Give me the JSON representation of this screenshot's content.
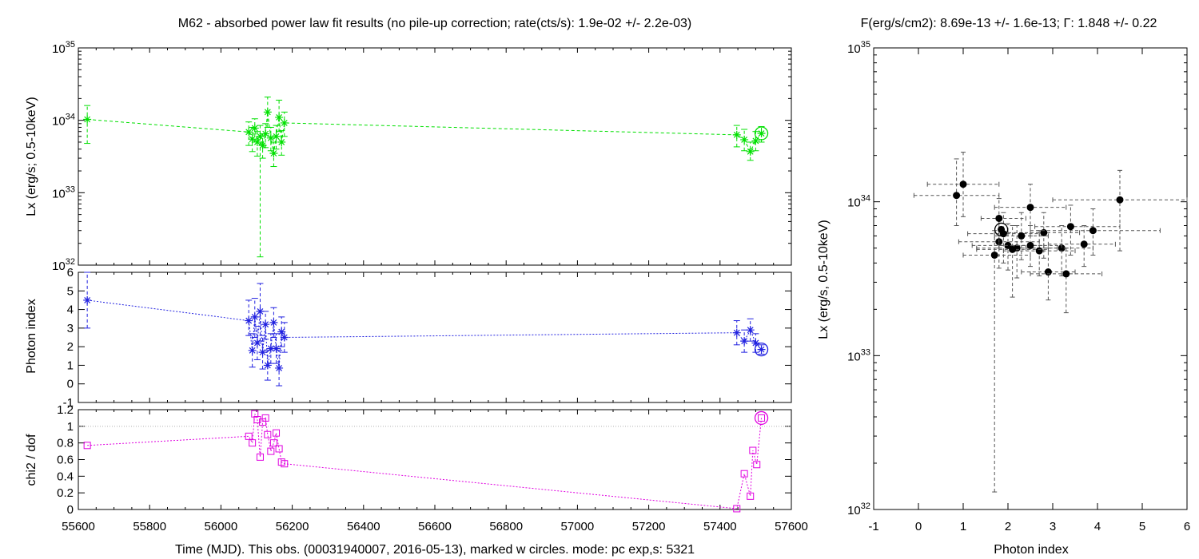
{
  "chart_data": [
    {
      "type": "scatter",
      "panel": "luminosity-vs-time",
      "title": "M62  - absorbed power law fit results (no pile-up correction; rate(cts/s): 1.9e-02 +/- 2.2e-03)",
      "ylabel": "Lx (erg/s; 0.5-10keV)",
      "xlim": [
        55600,
        57600
      ],
      "ylim": [
        1e+32,
        1e+35
      ],
      "yscale": "log",
      "ytick_labels": [
        "10^32",
        "10^33",
        "10^34",
        "10^35"
      ],
      "color": "#00e000",
      "points": [
        {
          "x": 55625,
          "y": 1.03e+34,
          "lo": 4.8e+33,
          "hi": 1.6e+34
        },
        {
          "x": 56078,
          "y": 6.9e+33,
          "lo": 4.5e+33,
          "hi": 9.5e+33
        },
        {
          "x": 56088,
          "y": 5.5e+33,
          "lo": 3.7e+33,
          "hi": 8e+33
        },
        {
          "x": 56095,
          "y": 7.8e+33,
          "lo": 5e+33,
          "hi": 1.05e+34
        },
        {
          "x": 56102,
          "y": 5e+33,
          "lo": 3.2e+33,
          "hi": 7e+33
        },
        {
          "x": 56110,
          "y": 6e+33,
          "lo": 1.3e+32,
          "hi": 8.5e+33
        },
        {
          "x": 56117,
          "y": 4.5e+33,
          "lo": 3e+33,
          "hi": 6.5e+33
        },
        {
          "x": 56125,
          "y": 6.5e+33,
          "lo": 4.2e+33,
          "hi": 9e+33
        },
        {
          "x": 56131,
          "y": 1.3e+34,
          "lo": 8e+33,
          "hi": 2.1e+34
        },
        {
          "x": 56140,
          "y": 5.7e+33,
          "lo": 3.8e+33,
          "hi": 8e+33
        },
        {
          "x": 56148,
          "y": 3.5e+33,
          "lo": 2.3e+33,
          "hi": 5e+33
        },
        {
          "x": 56155,
          "y": 6e+33,
          "lo": 4e+33,
          "hi": 8.5e+33
        },
        {
          "x": 56163,
          "y": 1.1e+34,
          "lo": 7e+33,
          "hi": 1.9e+34
        },
        {
          "x": 56170,
          "y": 5e+33,
          "lo": 3.3e+33,
          "hi": 7.2e+33
        },
        {
          "x": 56178,
          "y": 9.2e+33,
          "lo": 6e+33,
          "hi": 1.3e+34
        },
        {
          "x": 57447,
          "y": 6.3e+33,
          "lo": 4.3e+33,
          "hi": 8.5e+33
        },
        {
          "x": 57468,
          "y": 5.4e+33,
          "lo": 3.8e+33,
          "hi": 7.5e+33
        },
        {
          "x": 57485,
          "y": 3.7e+33,
          "lo": 2.8e+33,
          "hi": 5e+33
        },
        {
          "x": 57500,
          "y": 5.2e+33,
          "lo": 3.8e+33,
          "hi": 7e+33
        },
        {
          "x": 57516,
          "y": 6.6e+33,
          "lo": 5e+33,
          "hi": 8.2e+33
        }
      ],
      "highlighted_x": 57516
    },
    {
      "type": "scatter",
      "panel": "photon-index-vs-time",
      "ylabel": "Photon index",
      "xlim": [
        55600,
        57600
      ],
      "ylim": [
        -1,
        6
      ],
      "yticks": [
        -1,
        0,
        1,
        2,
        3,
        4,
        5,
        6
      ],
      "color": "#2020e0",
      "points": [
        {
          "x": 55625,
          "y": 4.5,
          "lo": 3.0,
          "hi": 6.0
        },
        {
          "x": 56078,
          "y": 3.4,
          "lo": 2.6,
          "hi": 4.5
        },
        {
          "x": 56088,
          "y": 1.8,
          "lo": 0.9,
          "hi": 2.7
        },
        {
          "x": 56095,
          "y": 3.6,
          "lo": 2.5,
          "hi": 4.6
        },
        {
          "x": 56102,
          "y": 2.2,
          "lo": 1.3,
          "hi": 3.1
        },
        {
          "x": 56110,
          "y": 3.9,
          "lo": 2.3,
          "hi": 5.4
        },
        {
          "x": 56117,
          "y": 1.7,
          "lo": 0.8,
          "hi": 2.6
        },
        {
          "x": 56125,
          "y": 3.2,
          "lo": 2.4,
          "hi": 3.9
        },
        {
          "x": 56131,
          "y": 1.0,
          "lo": 0.2,
          "hi": 1.8
        },
        {
          "x": 56140,
          "y": 1.9,
          "lo": 1.1,
          "hi": 2.7
        },
        {
          "x": 56148,
          "y": 3.3,
          "lo": 2.5,
          "hi": 4.1
        },
        {
          "x": 56155,
          "y": 1.9,
          "lo": 1.1,
          "hi": 2.7
        },
        {
          "x": 56163,
          "y": 0.85,
          "lo": -0.1,
          "hi": 1.8
        },
        {
          "x": 56170,
          "y": 2.8,
          "lo": 2.0,
          "hi": 3.6
        },
        {
          "x": 56178,
          "y": 2.5,
          "lo": 1.7,
          "hi": 3.3
        },
        {
          "x": 57447,
          "y": 2.75,
          "lo": 2.1,
          "hi": 3.4
        },
        {
          "x": 57468,
          "y": 2.3,
          "lo": 1.7,
          "hi": 2.9
        },
        {
          "x": 57485,
          "y": 2.9,
          "lo": 2.3,
          "hi": 3.5
        },
        {
          "x": 57500,
          "y": 2.2,
          "lo": 1.7,
          "hi": 2.7
        },
        {
          "x": 57516,
          "y": 1.85,
          "lo": 1.6,
          "hi": 2.1
        }
      ],
      "highlighted_x": 57516
    },
    {
      "type": "line",
      "panel": "chi2-vs-time",
      "ylabel": "chi2 / dof",
      "xlabel": "Time (MJD). This obs. (00031940007, 2016-05-13), marked w circles. mode: pc exp,s: 5321",
      "xlim": [
        55600,
        57600
      ],
      "xticks": [
        55600,
        55800,
        56000,
        56200,
        56400,
        56600,
        56800,
        57000,
        57200,
        57400,
        57600
      ],
      "ylim": [
        0,
        1.2
      ],
      "yticks": [
        0,
        0.2,
        0.4,
        0.6,
        0.8,
        1,
        1.2
      ],
      "reference_line": 1,
      "color": "#e000e0",
      "points": [
        {
          "x": 55625,
          "y": 0.77
        },
        {
          "x": 56078,
          "y": 0.88
        },
        {
          "x": 56088,
          "y": 0.8
        },
        {
          "x": 56095,
          "y": 1.15
        },
        {
          "x": 56102,
          "y": 1.08
        },
        {
          "x": 56110,
          "y": 0.63
        },
        {
          "x": 56117,
          "y": 1.05
        },
        {
          "x": 56125,
          "y": 1.1
        },
        {
          "x": 56131,
          "y": 0.9
        },
        {
          "x": 56140,
          "y": 0.7
        },
        {
          "x": 56148,
          "y": 0.8
        },
        {
          "x": 56155,
          "y": 0.92
        },
        {
          "x": 56163,
          "y": 0.73
        },
        {
          "x": 56170,
          "y": 0.57
        },
        {
          "x": 56178,
          "y": 0.55
        },
        {
          "x": 57447,
          "y": 0.01
        },
        {
          "x": 57468,
          "y": 0.43
        },
        {
          "x": 57485,
          "y": 0.16
        },
        {
          "x": 57492,
          "y": 0.71
        },
        {
          "x": 57503,
          "y": 0.54
        },
        {
          "x": 57516,
          "y": 1.1
        }
      ],
      "highlighted_x": 57516
    },
    {
      "type": "scatter",
      "panel": "luminosity-vs-photon-index",
      "title": "F(erg/s/cm2): 8.69e-13 +/- 1.6e-13; Γ: 1.848 +/- 0.22",
      "xlabel": "Photon index",
      "ylabel": "Lx (erg/s, 0.5-10keV)",
      "xlim": [
        -1,
        6
      ],
      "xticks": [
        -1,
        0,
        1,
        2,
        3,
        4,
        5,
        6
      ],
      "ylim": [
        1e+32,
        1e+35
      ],
      "yscale": "log",
      "ytick_labels": [
        "10^32",
        "10^33",
        "10^34",
        "10^35"
      ],
      "color": "#000000",
      "points": [
        {
          "x": 4.5,
          "y": 1.03e+34,
          "xlo": 3.0,
          "xhi": 6.0,
          "ylo": 4.8e+33,
          "yhi": 1.6e+34
        },
        {
          "x": 3.4,
          "y": 6.9e+33,
          "xlo": 2.6,
          "xhi": 4.5,
          "ylo": 4.5e+33,
          "yhi": 9.5e+33
        },
        {
          "x": 1.8,
          "y": 5.5e+33,
          "xlo": 0.9,
          "xhi": 2.7,
          "ylo": 3.7e+33,
          "yhi": 8e+33
        },
        {
          "x": 1.8,
          "y": 7.8e+33,
          "xlo": 1.4,
          "xhi": 2.4,
          "ylo": 5e+33,
          "yhi": 1.05e+34
        },
        {
          "x": 2.2,
          "y": 5e+33,
          "xlo": 1.3,
          "xhi": 3.1,
          "ylo": 3.2e+33,
          "yhi": 7e+33
        },
        {
          "x": 1.7,
          "y": 4.5e+33,
          "xlo": 1.0,
          "xhi": 2.5,
          "ylo": 1.3e+32,
          "yhi": 6.5e+33
        },
        {
          "x": 3.2,
          "y": 5e+33,
          "xlo": 2.4,
          "xhi": 3.9,
          "ylo": 3.3e+33,
          "yhi": 7e+33
        },
        {
          "x": 1.0,
          "y": 1.3e+34,
          "xlo": 0.2,
          "xhi": 1.8,
          "ylo": 8e+33,
          "yhi": 2.1e+34
        },
        {
          "x": 0.85,
          "y": 1.1e+34,
          "xlo": -0.1,
          "xhi": 1.8,
          "ylo": 7e+33,
          "yhi": 1.9e+34
        },
        {
          "x": 1.9,
          "y": 6.2e+33,
          "xlo": 1.1,
          "xhi": 2.7,
          "ylo": 4e+33,
          "yhi": 8.5e+33
        },
        {
          "x": 2.5,
          "y": 9.2e+33,
          "xlo": 1.7,
          "xhi": 3.3,
          "ylo": 6e+33,
          "yhi": 1.3e+34
        },
        {
          "x": 2.8,
          "y": 6.3e+33,
          "xlo": 2.0,
          "xhi": 3.6,
          "ylo": 4.3e+33,
          "yhi": 8.5e+33
        },
        {
          "x": 3.9,
          "y": 6.5e+33,
          "xlo": 2.5,
          "xhi": 5.4,
          "ylo": 4.5e+33,
          "yhi": 9e+33
        },
        {
          "x": 2.3,
          "y": 6e+33,
          "xlo": 1.7,
          "xhi": 2.9,
          "ylo": 4.2e+33,
          "yhi": 8.5e+33
        },
        {
          "x": 2.9,
          "y": 3.5e+33,
          "xlo": 2.3,
          "xhi": 3.5,
          "ylo": 2.3e+33,
          "yhi": 5e+33
        },
        {
          "x": 3.3,
          "y": 3.4e+33,
          "xlo": 2.5,
          "xhi": 4.1,
          "ylo": 1.9e+33,
          "yhi": 5e+33
        },
        {
          "x": 2.0,
          "y": 5.2e+33,
          "xlo": 1.2,
          "xhi": 2.8,
          "ylo": 3.6e+33,
          "yhi": 7.2e+33
        },
        {
          "x": 2.5,
          "y": 5.2e+33,
          "xlo": 1.8,
          "xhi": 3.2,
          "ylo": 3.8e+33,
          "yhi": 7e+33
        },
        {
          "x": 2.7,
          "y": 4.8e+33,
          "xlo": 1.9,
          "xhi": 3.5,
          "ylo": 3.3e+33,
          "yhi": 6.5e+33
        },
        {
          "x": 3.7,
          "y": 5.3e+33,
          "xlo": 2.9,
          "xhi": 4.4,
          "ylo": 3.8e+33,
          "yhi": 7e+33
        },
        {
          "x": 2.1,
          "y": 4.9e+33,
          "xlo": 1.3,
          "xhi": 2.9,
          "ylo": 2.4e+33,
          "yhi": 7e+33
        }
      ],
      "highlighted": {
        "x": 1.85,
        "y": 6.6e+33
      }
    }
  ]
}
